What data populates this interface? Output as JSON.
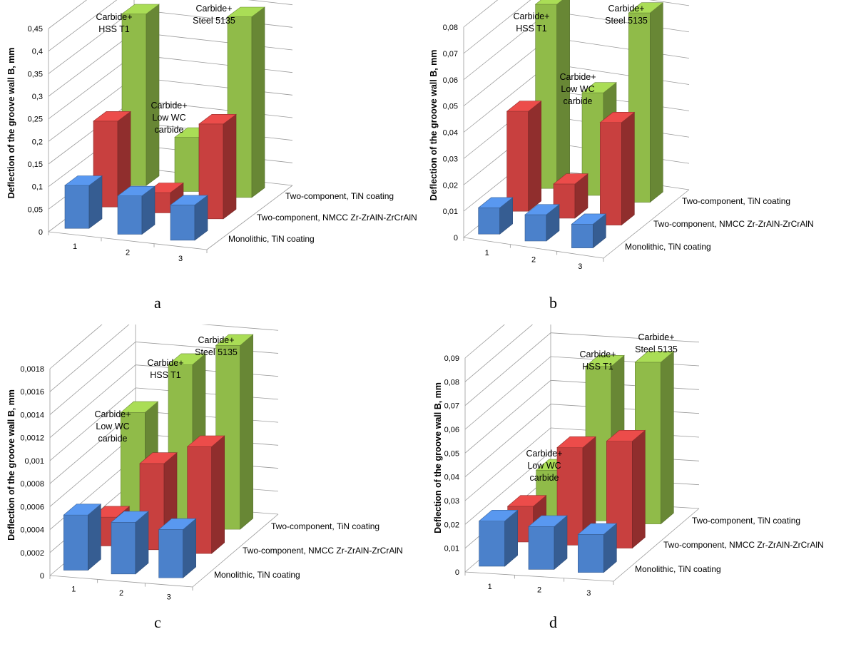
{
  "colors": {
    "Monolithic, TiN coating": "#4b81cb",
    "Two-component, NMCC Zr-ZrAlN-ZrCrAlN": "#c8403f",
    "Two-component, TiN coating": "#90bb49"
  },
  "chart_data": [
    {
      "id": "a",
      "panel_label": "a",
      "type": "bar3d",
      "ylabel": "Deflection of the groove wall B, mm",
      "ylim": [
        0,
        0.45
      ],
      "yticks": [
        "0",
        "0,05",
        "0,1",
        "0,15",
        "0,2",
        "0,25",
        "0,3",
        "0,35",
        "0,4",
        "0,45"
      ],
      "categories": [
        "1",
        "2",
        "3"
      ],
      "series": [
        {
          "name": "Monolithic, TiN coating",
          "values": [
            0.095,
            0.085,
            0.078
          ]
        },
        {
          "name": "Two-component, NMCC Zr-ZrAlN-ZrCrAlN",
          "values": [
            0.19,
            0.045,
            0.21
          ]
        },
        {
          "name": "Two-component, TiN coating",
          "values": [
            0.38,
            0.12,
            0.4
          ]
        }
      ],
      "annotations": [
        {
          "lines": [
            "Carbide+",
            "HSS T1"
          ]
        },
        {
          "lines": [
            "Carbide+",
            "Low WC",
            "carbide"
          ]
        },
        {
          "lines": [
            "Carbide+",
            "Steel 5135"
          ]
        }
      ]
    },
    {
      "id": "b",
      "panel_label": "b",
      "type": "bar3d",
      "ylabel": "Deflection of the groove wall B, mm",
      "ylim": [
        0,
        0.08
      ],
      "yticks": [
        "0",
        "0,01",
        "0,02",
        "0,03",
        "0,04",
        "0,05",
        "0,06",
        "0,07",
        "0,08"
      ],
      "categories": [
        "1",
        "2",
        "3"
      ],
      "series": [
        {
          "name": "Monolithic, TiN coating",
          "values": [
            0.01,
            0.01,
            0.009
          ]
        },
        {
          "name": "Two-component, NMCC Zr-ZrAlN-ZrCrAlN",
          "values": [
            0.038,
            0.013,
            0.039
          ]
        },
        {
          "name": "Two-component, TiN coating",
          "values": [
            0.07,
            0.039,
            0.072
          ]
        }
      ],
      "annotations": [
        {
          "lines": [
            "Carbide+",
            "HSS T1"
          ]
        },
        {
          "lines": [
            "Carbide+",
            "Low WC",
            "carbide"
          ]
        },
        {
          "lines": [
            "Carbide+",
            "Steel 5135"
          ]
        }
      ]
    },
    {
      "id": "c",
      "panel_label": "c",
      "type": "bar3d",
      "ylabel": "Deflection of the groove wall B, mm",
      "ylim": [
        0,
        0.0018
      ],
      "yticks": [
        "0",
        "0,0002",
        "0,0004",
        "0,0006",
        "0,0008",
        "0,001",
        "0,0012",
        "0,0014",
        "0,0016",
        "0,0018"
      ],
      "categories": [
        "1",
        "2",
        "3"
      ],
      "series": [
        {
          "name": "Monolithic, TiN coating",
          "values": [
            0.00048,
            0.00045,
            0.00042
          ]
        },
        {
          "name": "Two-component, NMCC Zr-ZrAlN-ZrCrAlN",
          "values": [
            0.00025,
            0.00075,
            0.00093
          ]
        },
        {
          "name": "Two-component, TiN coating",
          "values": [
            0.00095,
            0.0014,
            0.0016
          ]
        }
      ],
      "annotations": [
        {
          "lines": [
            "Carbide+",
            "Low WC",
            "carbide"
          ]
        },
        {
          "lines": [
            "Carbide+",
            "HSS T1"
          ]
        },
        {
          "lines": [
            "Carbide+",
            "Steel 5135"
          ]
        }
      ]
    },
    {
      "id": "d",
      "panel_label": "d",
      "type": "bar3d",
      "ylabel": "Deflection of the groove wall B, mm",
      "ylim": [
        0,
        0.09
      ],
      "yticks": [
        "0",
        "0,01",
        "0,02",
        "0,03",
        "0,04",
        "0,05",
        "0,06",
        "0,07",
        "0,08",
        "0,09"
      ],
      "categories": [
        "1",
        "2",
        "3"
      ],
      "series": [
        {
          "name": "Monolithic, TiN coating",
          "values": [
            0.019,
            0.018,
            0.016
          ]
        },
        {
          "name": "Two-component, NMCC Zr-ZrAlN-ZrCrAlN",
          "values": [
            0.015,
            0.041,
            0.045
          ]
        },
        {
          "name": "Two-component, TiN coating",
          "values": [
            0.02,
            0.065,
            0.068
          ]
        }
      ],
      "annotations": [
        {
          "lines": [
            "Carbide+",
            "Low WC",
            "carbide"
          ]
        },
        {
          "lines": [
            "Carbide+",
            "HSS T1"
          ]
        },
        {
          "lines": [
            "Carbide+",
            "Steel 5135"
          ]
        }
      ]
    }
  ]
}
